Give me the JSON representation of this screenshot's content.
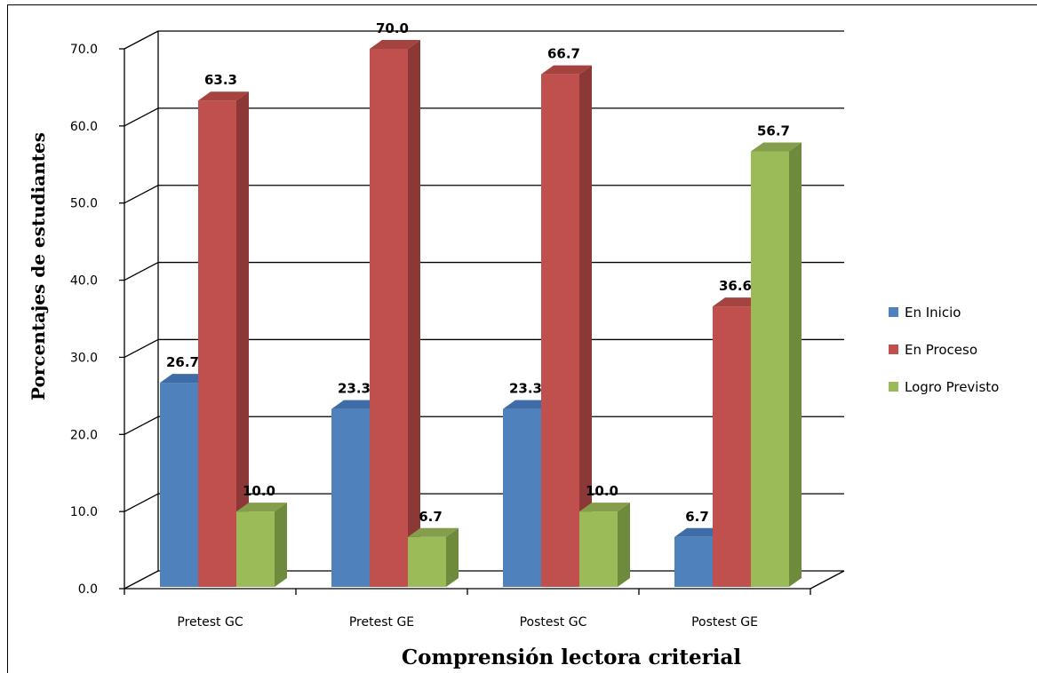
{
  "chart_data": {
    "type": "bar",
    "categories": [
      "Pretest GC",
      "Pretest GE",
      "Postest GC",
      "Postest GE"
    ],
    "series": [
      {
        "name": "En Inicio",
        "values": [
          26.7,
          23.3,
          23.3,
          6.7
        ]
      },
      {
        "name": "En Proceso",
        "values": [
          63.3,
          70.0,
          66.7,
          36.6
        ]
      },
      {
        "name": "Logro Previsto",
        "values": [
          10.0,
          6.7,
          10.0,
          56.7
        ]
      }
    ],
    "data_labels": [
      [
        "26.7",
        "23.3",
        "23.3",
        "6.7"
      ],
      [
        "63.3",
        "70.0",
        "66.7",
        "36.6"
      ],
      [
        "10.0",
        "6.7",
        "10.0",
        "56.7"
      ]
    ],
    "title": "",
    "xlabel": "Comprensión lectora criterial",
    "ylabel": "Porcentajes de estudiantes",
    "ylim": [
      0,
      70
    ],
    "yticks": [
      "0.0",
      "10.0",
      "20.0",
      "30.0",
      "40.0",
      "50.0",
      "60.0",
      "70.0"
    ],
    "grid": true,
    "legend_position": "right",
    "three_d": true,
    "colors": {
      "En Inicio": {
        "front": "#4F81BD",
        "side": "#385D8A",
        "top": "#3E6CA6"
      },
      "En Proceso": {
        "front": "#C0504D",
        "side": "#8C3836",
        "top": "#A54340"
      },
      "Logro Previsto": {
        "front": "#9BBB59",
        "side": "#6E8A3C",
        "top": "#849E4C"
      }
    }
  }
}
